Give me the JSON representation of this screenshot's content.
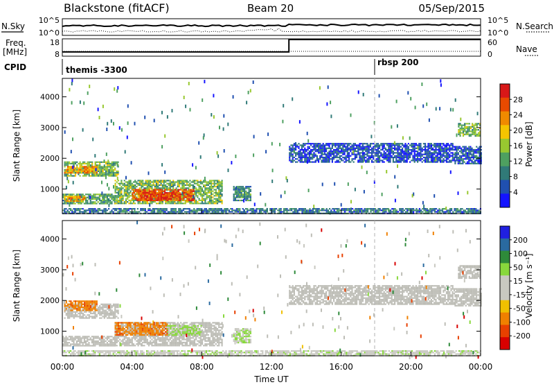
{
  "header": {
    "station": "Blackstone (fitACF)",
    "beam": "Beam 20",
    "date": "05/Sep/2015"
  },
  "left_labels": {
    "nsky": "N.Sky",
    "freq_line1": "Freq.",
    "freq_line2": "[MHz]",
    "cpid": "CPID"
  },
  "right_labels": {
    "nsearch": "N.Search",
    "nave": "Nave"
  },
  "cpid_blocks": [
    {
      "label": "themis -3300",
      "start_hour": 0
    },
    {
      "label": "rbsp 200",
      "start_hour": 18
    }
  ],
  "colors": {
    "power_scale": [
      "#1414ff",
      "#2050b0",
      "#307a78",
      "#4ea060",
      "#98c830",
      "#f5c400",
      "#f08a00",
      "#e84a00",
      "#d81818"
    ],
    "velocity_scale": [
      "#2020e0",
      "#2a6aa0",
      "#2e8a3a",
      "#88d83c",
      "#c8c8c0",
      "#c8c8c0",
      "#f0c000",
      "#f08000",
      "#e84000",
      "#d80000"
    ],
    "ground_scatter": "#bdbdb6",
    "dashed_marker": "#b0b0b0"
  },
  "chart_data": [
    {
      "type": "line",
      "name": "noise",
      "left_axis_ticks": [
        "10^5",
        "10^0"
      ],
      "right_axis_ticks": [
        "10^5",
        "10^0"
      ],
      "series": [
        {
          "name": "N.Sky",
          "style": "solid"
        },
        {
          "name": "N.Search",
          "style": "dotted"
        }
      ]
    },
    {
      "type": "line",
      "name": "frequency_nave",
      "left_axis_ticks": [
        "18",
        "8"
      ],
      "right_axis_ticks": [
        "60",
        "0"
      ],
      "series": [
        {
          "name": "Freq",
          "style": "solid",
          "x": [
            0,
            13,
            13,
            24
          ],
          "y": [
            10.2,
            10.2,
            18,
            18
          ]
        },
        {
          "name": "Nave",
          "style": "dotted",
          "x": [
            0,
            24
          ],
          "y": [
            10,
            10
          ]
        }
      ]
    },
    {
      "type": "heatmap",
      "name": "power",
      "ylabel": "Slant Range [km]",
      "yticks": [
        1000,
        2000,
        3000,
        4000
      ],
      "ylim": [
        200,
        4600
      ],
      "xlim": [
        0,
        24
      ],
      "colorbar_label": "Power [dB]",
      "colorbar_ticks": [
        "28",
        "24",
        "20",
        "16",
        "12",
        "8",
        "4"
      ],
      "colorbar_range": [
        0,
        32
      ],
      "regions": [
        {
          "x0": 0.1,
          "x1": 3.2,
          "y0": 1450,
          "y1": 1900,
          "value": 14
        },
        {
          "x0": 0.1,
          "x1": 2.0,
          "y0": 1550,
          "y1": 1750,
          "value": 22
        },
        {
          "x0": 0.0,
          "x1": 3.0,
          "y0": 550,
          "y1": 850,
          "value": 12
        },
        {
          "x0": 0.1,
          "x1": 1.3,
          "y0": 620,
          "y1": 780,
          "value": 22
        },
        {
          "x0": 3.0,
          "x1": 9.2,
          "y0": 520,
          "y1": 1300,
          "value": 14
        },
        {
          "x0": 4.0,
          "x1": 7.5,
          "y0": 620,
          "y1": 1000,
          "value": 26
        },
        {
          "x0": 4.5,
          "x1": 6.5,
          "y0": 700,
          "y1": 900,
          "value": 29
        },
        {
          "x0": 9.8,
          "x1": 10.8,
          "y0": 650,
          "y1": 1100,
          "value": 10
        },
        {
          "x0": 13.0,
          "x1": 22.5,
          "y0": 1900,
          "y1": 2500,
          "value": 5
        },
        {
          "x0": 22.5,
          "x1": 24.0,
          "y0": 1850,
          "y1": 2400,
          "value": 6
        },
        {
          "x0": 22.7,
          "x1": 24.0,
          "y0": 2750,
          "y1": 3150,
          "value": 14
        },
        {
          "x0": 0.0,
          "x1": 24.0,
          "y0": 200,
          "y1": 380,
          "value": 8
        }
      ]
    },
    {
      "type": "heatmap",
      "name": "velocity",
      "ylabel": "Slant Range [km]",
      "yticks": [
        1000,
        2000,
        3000,
        4000
      ],
      "ylim": [
        200,
        4600
      ],
      "xlim": [
        0,
        24
      ],
      "xlabel": "Time UT",
      "xtick_labels": [
        "00:00",
        "04:00",
        "08:00",
        "12:00",
        "16:00",
        "20:00",
        "00:00"
      ],
      "colorbar_label": "Velocity [m s⁻¹]",
      "colorbar_ticks": [
        "200",
        "100",
        "50",
        "15",
        "-15",
        "-50",
        "-100",
        "-200"
      ],
      "regions": [
        {
          "x0": 0.1,
          "x1": 3.2,
          "y0": 1450,
          "y1": 1900,
          "value": "ground"
        },
        {
          "x0": 0.1,
          "x1": 2.0,
          "y0": 1700,
          "y1": 2000,
          "value": -60
        },
        {
          "x0": 0.0,
          "x1": 3.0,
          "y0": 550,
          "y1": 850,
          "value": "ground"
        },
        {
          "x0": 3.0,
          "x1": 9.2,
          "y0": 520,
          "y1": 1300,
          "value": "ground"
        },
        {
          "x0": 3.0,
          "x1": 6.0,
          "y0": 900,
          "y1": 1300,
          "value": -60
        },
        {
          "x0": 6.0,
          "x1": 8.0,
          "y0": 900,
          "y1": 1200,
          "value": 40
        },
        {
          "x0": 9.8,
          "x1": 10.8,
          "y0": 650,
          "y1": 1100,
          "value": 30
        },
        {
          "x0": 13.0,
          "x1": 22.5,
          "y0": 1900,
          "y1": 2500,
          "value": "ground"
        },
        {
          "x0": 22.5,
          "x1": 24.0,
          "y0": 1850,
          "y1": 2400,
          "value": "ground"
        },
        {
          "x0": 22.7,
          "x1": 24.0,
          "y0": 2750,
          "y1": 3150,
          "value": "ground"
        },
        {
          "x0": 0.0,
          "x1": 24.0,
          "y0": 200,
          "y1": 380,
          "value": 20
        }
      ]
    }
  ]
}
